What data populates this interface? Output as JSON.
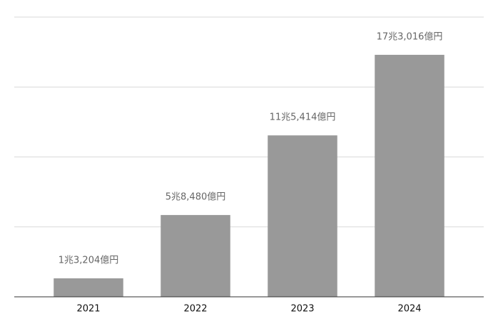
{
  "chart_data": {
    "type": "bar",
    "categories": [
      "2021",
      "2022",
      "2023",
      "2024"
    ],
    "values": [
      13204,
      58480,
      115414,
      173016
    ],
    "value_labels": [
      "1兆3,204億円",
      "5兆8,480億円",
      "11兆5,414億円",
      "17兆3,016億円"
    ],
    "color": "#999999",
    "ylim": [
      0,
      200000
    ],
    "yticks": [
      0,
      50000,
      100000,
      150000,
      200000
    ],
    "grid": true
  }
}
